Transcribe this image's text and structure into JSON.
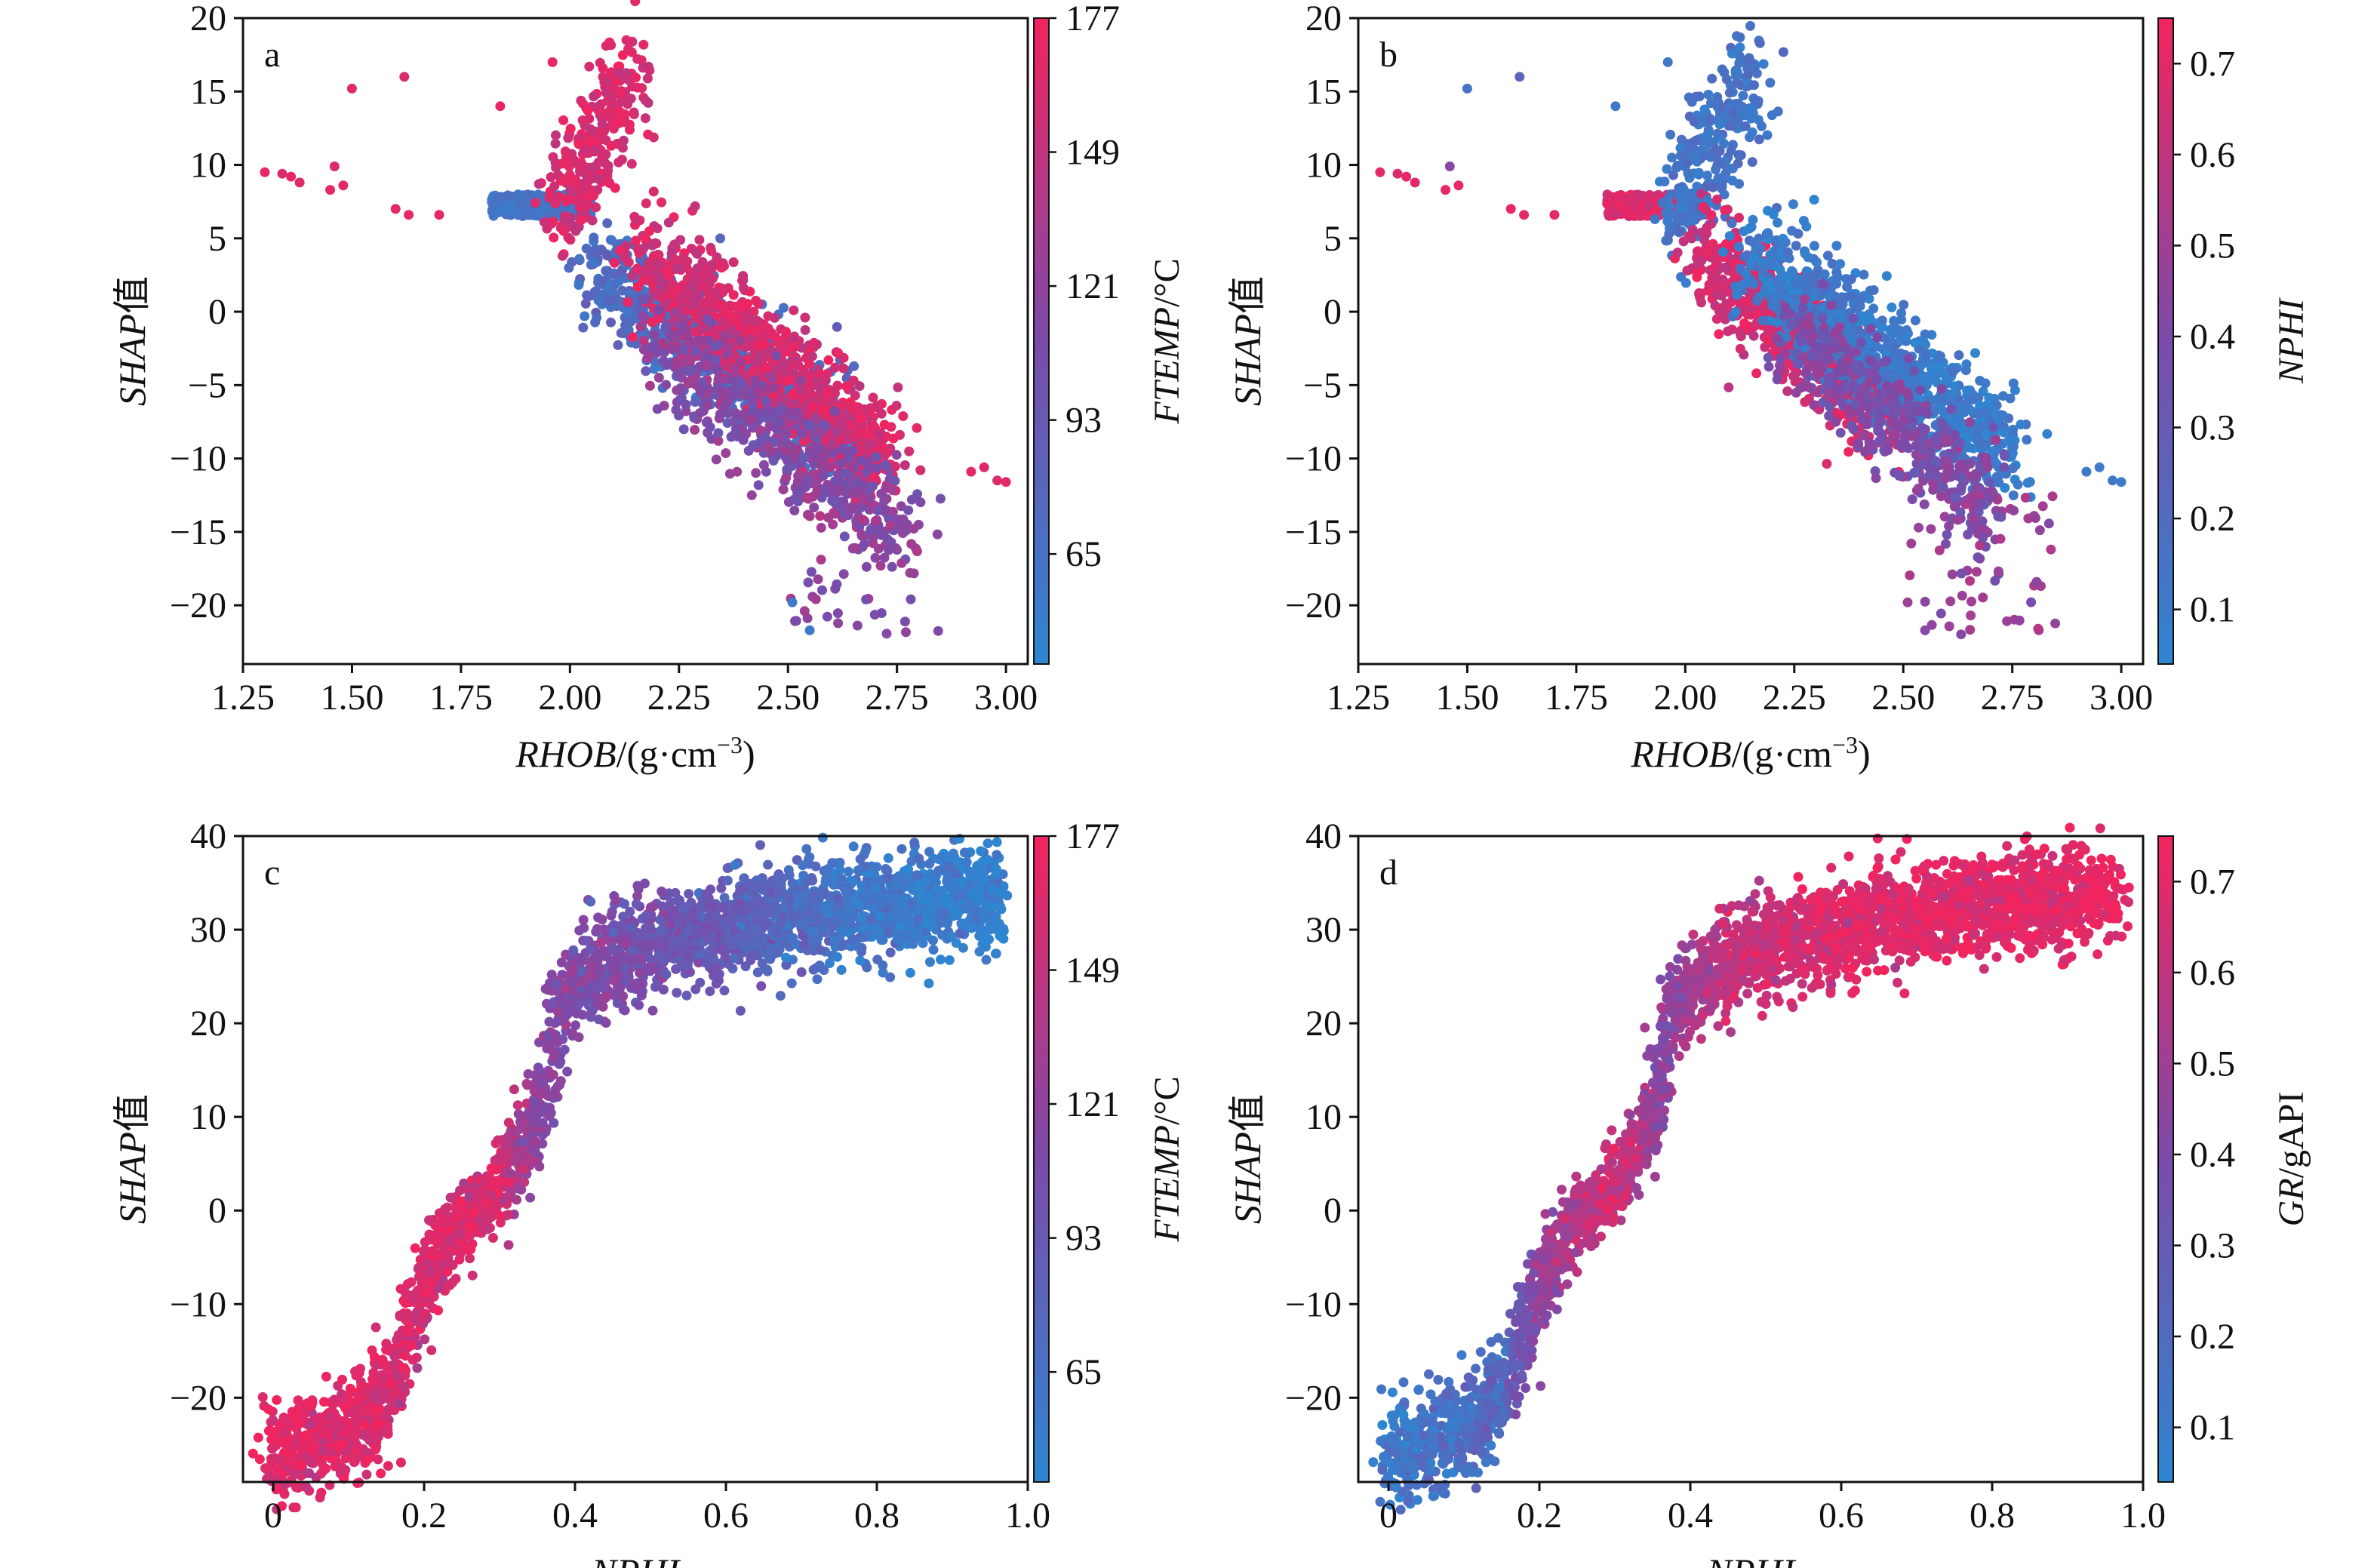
{
  "colormap": {
    "low": "#2E86D1",
    "mid": "#7B4BAA",
    "high": "#F2245E"
  },
  "chart_data": [
    {
      "panel": "a",
      "type": "scatter",
      "xlabel": {
        "italic": "RHOB",
        "rest": "/(g·cm",
        "sup": "−3",
        "close": ")"
      },
      "ylabel": {
        "italic": "SHAP",
        "rest": "值"
      },
      "xlim": [
        1.25,
        3.05
      ],
      "ylim": [
        -24,
        20
      ],
      "xticks": [
        1.25,
        1.5,
        1.75,
        2.0,
        2.25,
        2.5,
        2.75,
        3.0
      ],
      "xtick_labels": [
        "1.25",
        "1.50",
        "1.75",
        "2.00",
        "2.25",
        "2.50",
        "2.75",
        "3.00"
      ],
      "yticks": [
        -20,
        -15,
        -10,
        -5,
        0,
        5,
        10,
        15,
        20
      ],
      "ytick_labels": [
        "−20",
        "−15",
        "−10",
        "−5",
        "0",
        "5",
        "10",
        "15",
        "20"
      ],
      "colorbar": {
        "label": {
          "italic": "FTEMP",
          "rest": "/°C"
        },
        "range": [
          42,
          177
        ],
        "ticks": [
          65,
          93,
          121,
          149,
          177
        ],
        "tick_labels": [
          "65",
          "93",
          "121",
          "149",
          "177"
        ]
      },
      "clusters": [
        {
          "x": [
            1.82,
            2.05
          ],
          "y": [
            6.5,
            8
          ],
          "c": [
            0.08,
            0.2
          ],
          "n": 320,
          "shape": "flat"
        },
        {
          "x": [
            1.98,
            2.15
          ],
          "y": [
            6,
            17
          ],
          "c": [
            0.78,
            1.0
          ],
          "n": 280,
          "shape": "diag"
        },
        {
          "x": [
            2.05,
            2.65
          ],
          "y": [
            3,
            -9
          ],
          "c": [
            0.1,
            0.35
          ],
          "n": 700,
          "shape": "diag"
        },
        {
          "x": [
            2.15,
            2.72
          ],
          "y": [
            4,
            -10
          ],
          "c": [
            0.75,
            1.0
          ],
          "n": 900,
          "shape": "diag"
        },
        {
          "x": [
            2.2,
            2.75
          ],
          "y": [
            -2,
            -15
          ],
          "c": [
            0.4,
            0.7
          ],
          "n": 500,
          "shape": "diag"
        },
        {
          "x": [
            2.5,
            2.85
          ],
          "y": [
            -12,
            -22
          ],
          "c": [
            0.45,
            0.75
          ],
          "n": 60,
          "shape": "spread"
        }
      ],
      "outliers": [
        {
          "x": 1.3,
          "y": 9.5,
          "c": 0.95
        },
        {
          "x": 1.34,
          "y": 9.4,
          "c": 0.9
        },
        {
          "x": 1.36,
          "y": 9.2,
          "c": 0.95
        },
        {
          "x": 1.38,
          "y": 8.8,
          "c": 0.92
        },
        {
          "x": 1.45,
          "y": 8.3,
          "c": 0.95
        },
        {
          "x": 1.46,
          "y": 9.9,
          "c": 0.9
        },
        {
          "x": 1.48,
          "y": 8.6,
          "c": 0.95
        },
        {
          "x": 1.5,
          "y": 15.2,
          "c": 0.93
        },
        {
          "x": 1.6,
          "y": 7.0,
          "c": 0.95
        },
        {
          "x": 1.62,
          "y": 16.0,
          "c": 0.9
        },
        {
          "x": 1.63,
          "y": 6.6,
          "c": 0.95
        },
        {
          "x": 1.7,
          "y": 6.6,
          "c": 0.95
        },
        {
          "x": 1.84,
          "y": 14.0,
          "c": 0.95
        },
        {
          "x": 1.96,
          "y": 17.0,
          "c": 0.95
        },
        {
          "x": 2.51,
          "y": -19.8,
          "c": 0.12
        },
        {
          "x": 2.55,
          "y": -21.7,
          "c": 0.12
        },
        {
          "x": 2.92,
          "y": -10.9,
          "c": 0.95
        },
        {
          "x": 2.95,
          "y": -10.6,
          "c": 0.92
        },
        {
          "x": 3.0,
          "y": -11.6,
          "c": 0.95
        },
        {
          "x": 2.98,
          "y": -11.5,
          "c": 0.9
        }
      ]
    },
    {
      "panel": "b",
      "type": "scatter",
      "xlabel": {
        "italic": "RHOB",
        "rest": "/(g·cm",
        "sup": "−3",
        "close": ")"
      },
      "ylabel": {
        "italic": "SHAP",
        "rest": "值"
      },
      "xlim": [
        1.25,
        3.05
      ],
      "ylim": [
        -24,
        20
      ],
      "xticks": [
        1.25,
        1.5,
        1.75,
        2.0,
        2.25,
        2.5,
        2.75,
        3.0
      ],
      "xtick_labels": [
        "1.25",
        "1.50",
        "1.75",
        "2.00",
        "2.25",
        "2.50",
        "2.75",
        "3.00"
      ],
      "yticks": [
        -20,
        -15,
        -10,
        -5,
        0,
        5,
        10,
        15,
        20
      ],
      "ytick_labels": [
        "−20",
        "−15",
        "−10",
        "−5",
        "0",
        "5",
        "10",
        "15",
        "20"
      ],
      "colorbar": {
        "label": {
          "italic": "NPHI",
          "rest": ""
        },
        "range": [
          0.04,
          0.75
        ],
        "ticks": [
          0.1,
          0.2,
          0.3,
          0.4,
          0.5,
          0.6,
          0.7
        ],
        "tick_labels": [
          "0.1",
          "0.2",
          "0.3",
          "0.4",
          "0.5",
          "0.6",
          "0.7"
        ]
      },
      "clusters": [
        {
          "x": [
            1.82,
            2.05
          ],
          "y": [
            6.5,
            8
          ],
          "c": [
            0.8,
            1.0
          ],
          "n": 320,
          "shape": "flat"
        },
        {
          "x": [
            1.98,
            2.15
          ],
          "y": [
            6,
            17
          ],
          "c": [
            0.05,
            0.25
          ],
          "n": 280,
          "shape": "diag"
        },
        {
          "x": [
            2.05,
            2.45
          ],
          "y": [
            4,
            -7
          ],
          "c": [
            0.75,
            1.0
          ],
          "n": 650,
          "shape": "diag"
        },
        {
          "x": [
            2.15,
            2.75
          ],
          "y": [
            4,
            -10
          ],
          "c": [
            0.0,
            0.2
          ],
          "n": 900,
          "shape": "diag"
        },
        {
          "x": [
            2.25,
            2.7
          ],
          "y": [
            -2,
            -13
          ],
          "c": [
            0.35,
            0.65
          ],
          "n": 450,
          "shape": "diag"
        },
        {
          "x": [
            2.5,
            2.85
          ],
          "y": [
            -12,
            -22
          ],
          "c": [
            0.45,
            0.75
          ],
          "n": 60,
          "shape": "spread"
        }
      ],
      "outliers": [
        {
          "x": 1.3,
          "y": 9.5,
          "c": 0.95
        },
        {
          "x": 1.34,
          "y": 9.4,
          "c": 0.9
        },
        {
          "x": 1.36,
          "y": 9.2,
          "c": 0.95
        },
        {
          "x": 1.38,
          "y": 8.8,
          "c": 0.92
        },
        {
          "x": 1.45,
          "y": 8.3,
          "c": 0.95
        },
        {
          "x": 1.46,
          "y": 9.9,
          "c": 0.55
        },
        {
          "x": 1.48,
          "y": 8.6,
          "c": 0.95
        },
        {
          "x": 1.5,
          "y": 15.2,
          "c": 0.15
        },
        {
          "x": 1.6,
          "y": 7.0,
          "c": 0.95
        },
        {
          "x": 1.62,
          "y": 16.0,
          "c": 0.3
        },
        {
          "x": 1.63,
          "y": 6.6,
          "c": 0.95
        },
        {
          "x": 1.7,
          "y": 6.6,
          "c": 0.95
        },
        {
          "x": 1.84,
          "y": 14.0,
          "c": 0.12
        },
        {
          "x": 1.96,
          "y": 17.0,
          "c": 0.12
        },
        {
          "x": 2.51,
          "y": -19.8,
          "c": 0.65
        },
        {
          "x": 2.55,
          "y": -21.7,
          "c": 0.55
        },
        {
          "x": 2.92,
          "y": -10.9,
          "c": 0.1
        },
        {
          "x": 2.95,
          "y": -10.6,
          "c": 0.1
        },
        {
          "x": 3.0,
          "y": -11.6,
          "c": 0.1
        },
        {
          "x": 2.98,
          "y": -11.5,
          "c": 0.12
        }
      ]
    },
    {
      "panel": "c",
      "type": "scatter",
      "xlabel": {
        "italic": "NPHI",
        "rest": "",
        "sup": "",
        "close": ""
      },
      "ylabel": {
        "italic": "SHAP",
        "rest": "值"
      },
      "xlim": [
        -0.04,
        1.0
      ],
      "ylim": [
        -29,
        40
      ],
      "xticks": [
        0,
        0.2,
        0.4,
        0.6,
        0.8,
        1.0
      ],
      "xtick_labels": [
        "0",
        "0.2",
        "0.4",
        "0.6",
        "0.8",
        "1.0"
      ],
      "yticks": [
        -20,
        -10,
        0,
        10,
        20,
        30,
        40
      ],
      "ytick_labels": [
        "−20",
        "−10",
        "0",
        "10",
        "20",
        "30",
        "40"
      ],
      "colorbar": {
        "label": {
          "italic": "FTEMP",
          "rest": "/°C"
        },
        "range": [
          42,
          177
        ],
        "ticks": [
          65,
          93,
          121,
          149,
          177
        ],
        "tick_labels": [
          "65",
          "93",
          "121",
          "149",
          "177"
        ]
      },
      "curve": {
        "x": [
          0.0,
          0.05,
          0.1,
          0.15,
          0.2,
          0.25,
          0.3,
          0.35,
          0.38,
          0.45,
          0.55,
          0.65,
          0.75,
          0.85,
          0.95
        ],
        "y": [
          -26,
          -25,
          -23.5,
          -20,
          -8,
          -1,
          2,
          10,
          22,
          27,
          29.5,
          31,
          32,
          33,
          33.5
        ]
      },
      "color_along_x": {
        "x": [
          0,
          0.15,
          0.3,
          0.35,
          0.45,
          0.6,
          0.75,
          0.95
        ],
        "c": [
          0.95,
          0.9,
          0.88,
          0.55,
          0.5,
          0.35,
          0.15,
          0.05
        ]
      }
    },
    {
      "panel": "d",
      "type": "scatter",
      "xlabel": {
        "italic": "NPHI",
        "rest": "",
        "sup": "",
        "close": ""
      },
      "ylabel": {
        "italic": "SHAP",
        "rest": "值"
      },
      "xlim": [
        -0.04,
        1.0
      ],
      "ylim": [
        -29,
        40
      ],
      "xticks": [
        0,
        0.2,
        0.4,
        0.6,
        0.8,
        1.0
      ],
      "xtick_labels": [
        "0",
        "0.2",
        "0.4",
        "0.6",
        "0.8",
        "1.0"
      ],
      "yticks": [
        -20,
        -10,
        0,
        10,
        20,
        30,
        40
      ],
      "ytick_labels": [
        "−20",
        "−10",
        "0",
        "10",
        "20",
        "30",
        "40"
      ],
      "colorbar": {
        "label": {
          "italic": "GR",
          "rest": "/gAPI"
        },
        "range": [
          0.04,
          0.75
        ],
        "ticks": [
          0.1,
          0.2,
          0.3,
          0.4,
          0.5,
          0.6,
          0.7
        ],
        "tick_labels": [
          "0.1",
          "0.2",
          "0.3",
          "0.4",
          "0.5",
          "0.6",
          "0.7"
        ]
      },
      "curve": {
        "x": [
          0.0,
          0.05,
          0.1,
          0.15,
          0.2,
          0.25,
          0.3,
          0.35,
          0.38,
          0.45,
          0.55,
          0.65,
          0.75,
          0.85,
          0.95
        ],
        "y": [
          -26,
          -25,
          -23.5,
          -20,
          -8,
          -1,
          2,
          10,
          22,
          27,
          29.5,
          31,
          32,
          33,
          33.5
        ]
      },
      "color_along_x": {
        "x": [
          0,
          0.15,
          0.2,
          0.3,
          0.36,
          0.45,
          0.6,
          0.95
        ],
        "c": [
          0.1,
          0.25,
          0.6,
          0.85,
          0.55,
          0.8,
          0.92,
          0.95
        ]
      }
    }
  ]
}
